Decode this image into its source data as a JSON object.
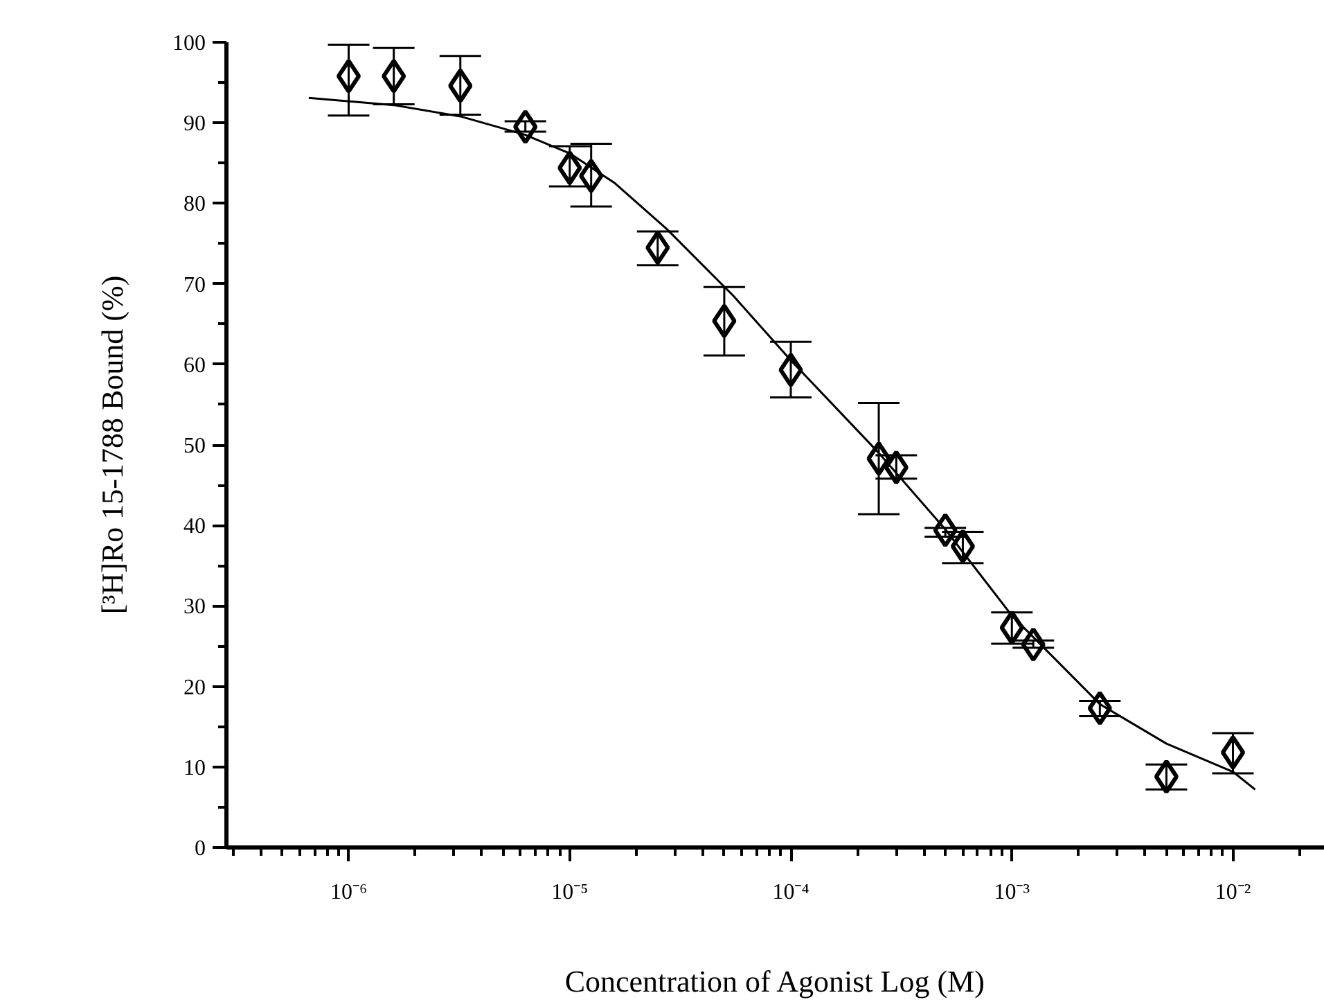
{
  "chart_data": {
    "type": "scatter",
    "xlabel": "Concentration of Agonist Log (M)",
    "ylabel": "[³H]Ro 15-1788 Bound (%)",
    "log": "x",
    "grid": false,
    "xlim": [
      2.8e-07,
      0.026
    ],
    "ylim": [
      0,
      100
    ],
    "xticks": [
      {
        "value": 1e-06,
        "label": "10⁻⁶"
      },
      {
        "value": 1e-05,
        "label": "10⁻⁵"
      },
      {
        "value": 0.0001,
        "label": "10⁻⁴"
      },
      {
        "value": 0.001,
        "label": "10⁻³"
      },
      {
        "value": 0.01,
        "label": "10⁻²"
      }
    ],
    "yticks": [
      0,
      10,
      20,
      30,
      40,
      50,
      60,
      70,
      80,
      90,
      100
    ],
    "series": [
      {
        "color": "#000000",
        "marker": "diamond",
        "x": [
          1e-06,
          1.6e-06,
          3.2e-06,
          6.3e-06,
          1e-05,
          1.25e-05,
          2.5e-05,
          5e-05,
          0.0001,
          0.00025,
          0.0003,
          0.0005,
          0.0006,
          0.001,
          0.00125,
          0.0025,
          0.005,
          0.01
        ],
        "values": [
          95.8,
          95.8,
          94.6,
          89.5,
          84.4,
          83.4,
          74.5,
          65.4,
          59.3,
          48.3,
          47.2,
          39.4,
          37.4,
          27.3,
          25.2,
          17.3,
          8.8,
          11.8
        ],
        "errors": [
          [
            90.9,
            99.7
          ],
          [
            92.3,
            99.3
          ],
          [
            91.0,
            98.3
          ],
          [
            88.9,
            90.2
          ],
          [
            82.1,
            87.1
          ],
          [
            79.6,
            87.4
          ],
          [
            72.3,
            76.5
          ],
          [
            61.1,
            69.6
          ],
          [
            55.9,
            62.8
          ],
          [
            41.4,
            55.2
          ],
          [
            45.8,
            48.7
          ],
          [
            38.6,
            39.7
          ],
          [
            35.3,
            39.2
          ],
          [
            25.3,
            29.2
          ],
          [
            24.8,
            25.7
          ],
          [
            16.3,
            18.2
          ],
          [
            7.2,
            10.3
          ],
          [
            9.2,
            14.2
          ]
        ]
      },
      {
        "type": "line",
        "color": "#000000",
        "line_style": "solid",
        "x": [
          6.6e-07,
          1.6e-06,
          3.2e-06,
          6.3e-06,
          1e-05,
          1.6e-05,
          2.75e-05,
          5.5e-05,
          0.0001,
          0.00025,
          0.0005,
          0.001,
          0.0025,
          0.005,
          0.01,
          0.0126
        ],
        "values": [
          93.1,
          92.2,
          90.8,
          88.5,
          86.2,
          82.5,
          76.8,
          68.5,
          60.5,
          49.0,
          39.5,
          28.8,
          17.8,
          12.9,
          9.4,
          7.2
        ]
      }
    ]
  }
}
